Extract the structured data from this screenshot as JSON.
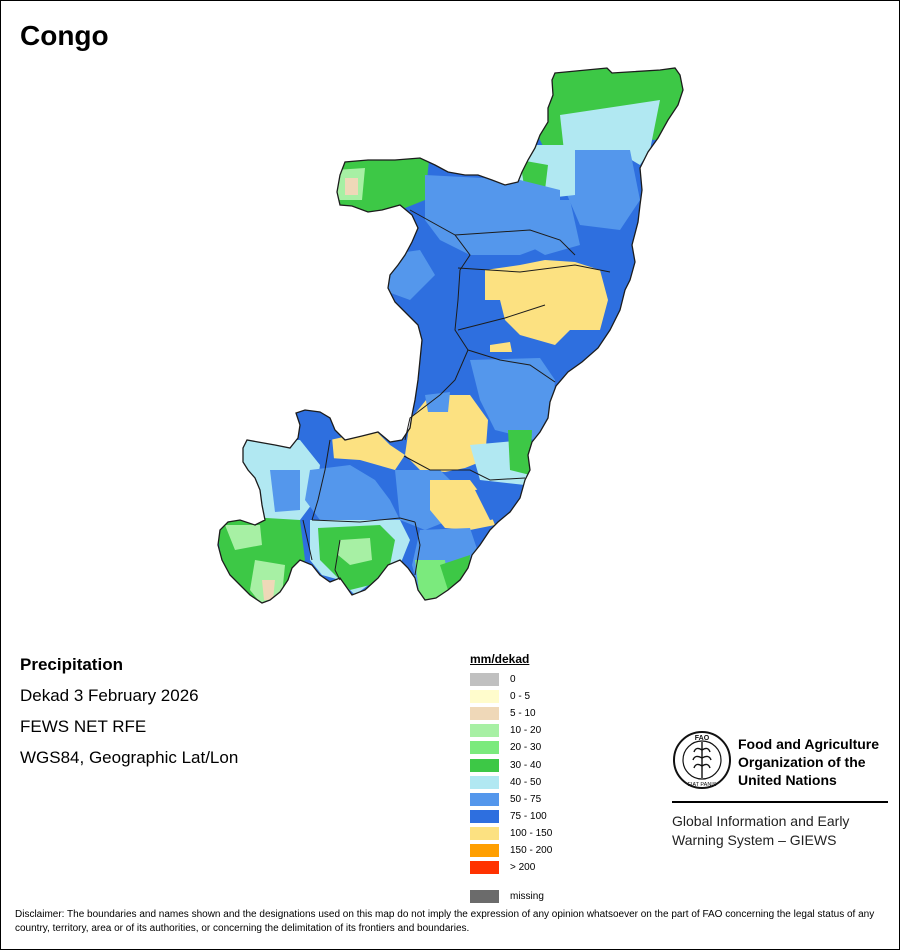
{
  "map": {
    "title": "Congo",
    "region_colors": {
      "yellow_100_150": "#fce181",
      "blue_75_100": "#2e6fdf",
      "blue_50_75": "#5497ec",
      "cyan_40_50": "#b1e8f2",
      "green_30_40": "#3dc846",
      "green_20_30": "#7bea7d",
      "green_10_20": "#a7f0a4",
      "tan_5_10": "#efd8b8",
      "border": "#1c1c1c"
    }
  },
  "info": {
    "title": "Precipitation",
    "period": "Dekad 3 February 2026",
    "source": "FEWS NET RFE",
    "projection": "WGS84, Geographic Lat/Lon"
  },
  "legend": {
    "unit": "mm/dekad",
    "items": [
      {
        "label": "0",
        "color": "#c0c0c0"
      },
      {
        "label": "0 - 5",
        "color": "#fffccc"
      },
      {
        "label": "5 - 10",
        "color": "#efd8b8"
      },
      {
        "label": "10 - 20",
        "color": "#a7f0a4"
      },
      {
        "label": "20 - 30",
        "color": "#7bea7d"
      },
      {
        "label": "30 - 40",
        "color": "#3dc846"
      },
      {
        "label": "40 - 50",
        "color": "#b1e8f2"
      },
      {
        "label": "50 - 75",
        "color": "#5497ec"
      },
      {
        "label": "75 - 100",
        "color": "#2e6fdf"
      },
      {
        "label": "100 - 150",
        "color": "#fce181"
      },
      {
        "label": "150 - 200",
        "color": "#ff9f00"
      },
      {
        "label": "> 200",
        "color": "#ff3200"
      }
    ],
    "missing": {
      "label": "missing",
      "color": "#6b6b6b"
    }
  },
  "organization": {
    "name": "Food and Agriculture Organization of the United Nations",
    "logo_text": "FAO",
    "logo_motto": "FIAT PANIS",
    "system": "Global Information and Early Warning System – GIEWS"
  },
  "disclaimer": "Disclaimer: The boundaries and names shown and the designations used on this map do not imply the expression of any opinion whatsoever on the part of FAO concerning the legal status of any country, territory, area or of its authorities, or concerning the delimitation of its frontiers and boundaries."
}
